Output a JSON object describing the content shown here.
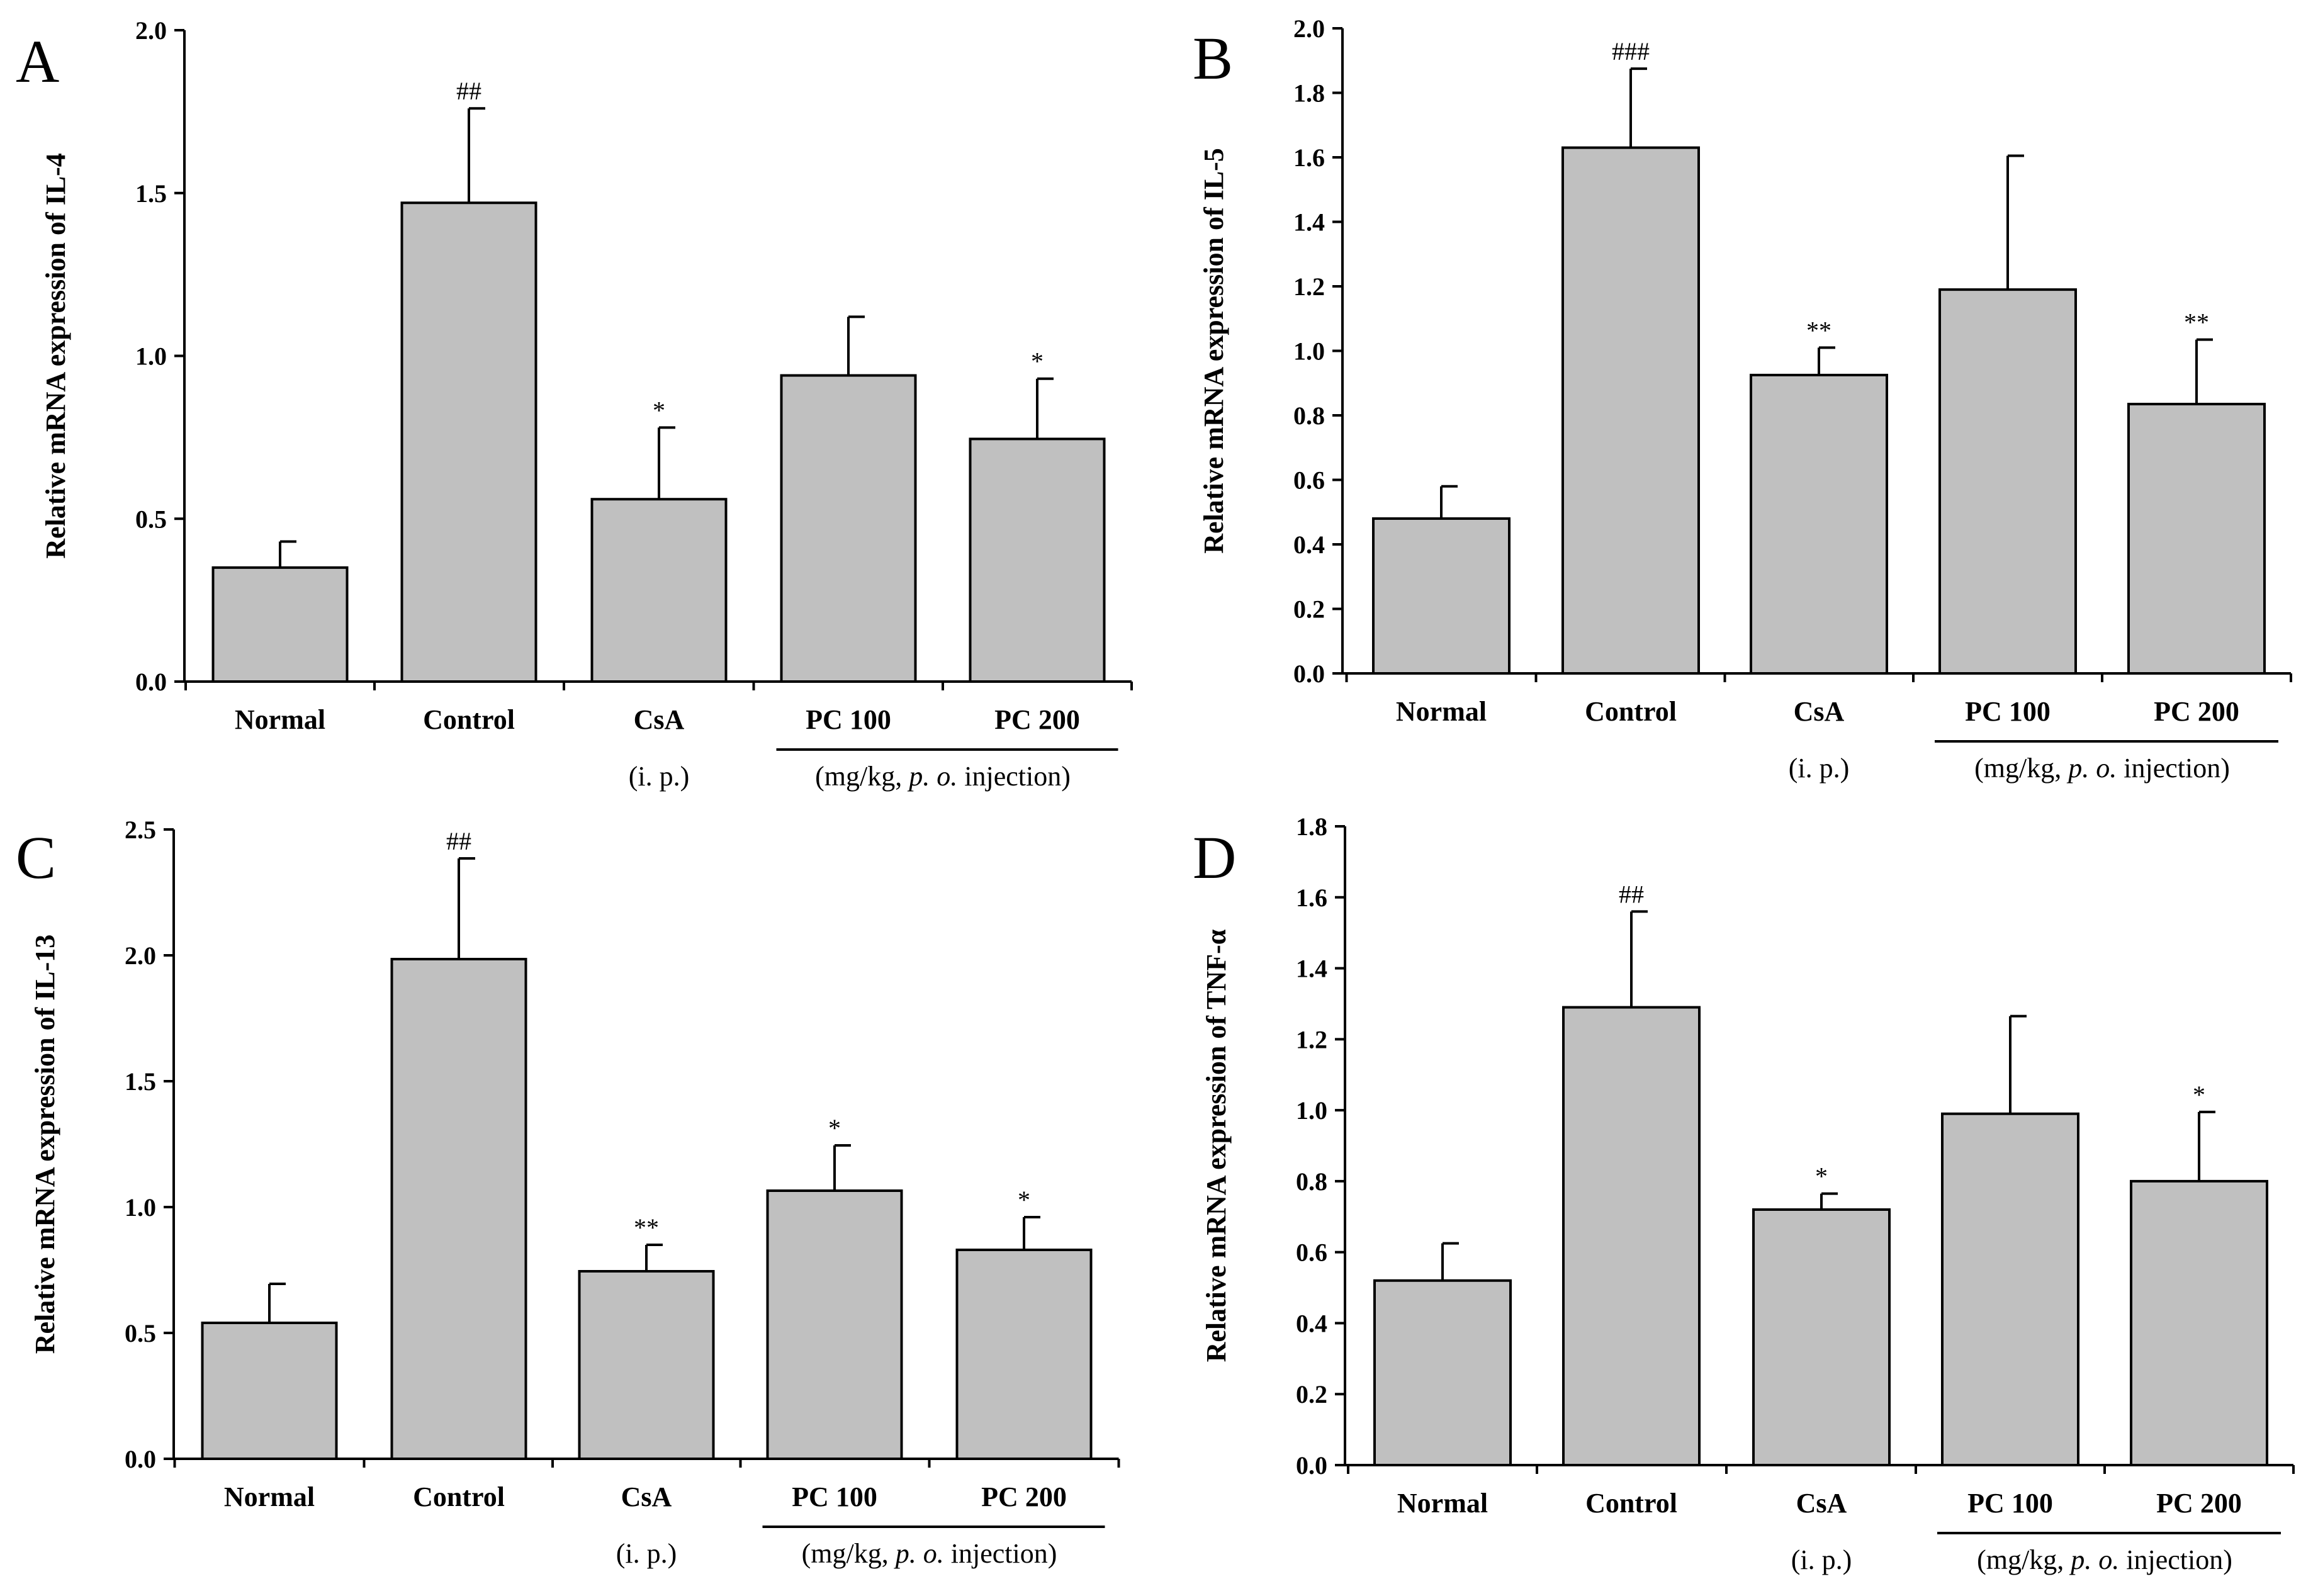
{
  "chart_data": [
    {
      "type": "bar",
      "panel": "A",
      "ylabel": "Relative mRNA expression of  IL-4",
      "ylim": [
        0,
        2.0
      ],
      "yticks": [
        "0.0",
        "0.5",
        "1.0",
        "1.5",
        "2.0"
      ],
      "categories": [
        "Normal",
        "Control",
        "CsA",
        "PC 100",
        "PC 200"
      ],
      "values": [
        0.35,
        1.47,
        0.56,
        0.94,
        0.745
      ],
      "errors": [
        0.08,
        0.29,
        0.22,
        0.18,
        0.185
      ],
      "significance": [
        "",
        "##",
        "*",
        "",
        "*"
      ],
      "group_notes": [
        "(i. p.)",
        "(mg/kg, p. o. injection)"
      ]
    },
    {
      "type": "bar",
      "panel": "B",
      "ylabel": "Relative mRNA expression of  IL-5",
      "ylim": [
        0,
        2.0
      ],
      "yticks": [
        "0.0",
        "0.2",
        "0.4",
        "0.6",
        "0.8",
        "1.0",
        "1.2",
        "1.4",
        "1.6",
        "1.8",
        "2.0"
      ],
      "categories": [
        "Normal",
        "Control",
        "CsA",
        "PC 100",
        "PC 200"
      ],
      "values": [
        0.48,
        1.63,
        0.925,
        1.19,
        0.835
      ],
      "errors": [
        0.1,
        0.245,
        0.085,
        0.415,
        0.2
      ],
      "significance": [
        "",
        "###",
        "**",
        "",
        "**"
      ],
      "group_notes": [
        "(i. p.)",
        "(mg/kg, p. o. injection)"
      ]
    },
    {
      "type": "bar",
      "panel": "C",
      "ylabel": "Relative mRNA expression of  IL-13",
      "ylim": [
        0,
        2.5
      ],
      "yticks": [
        "0.0",
        "0.5",
        "1.0",
        "1.5",
        "2.0",
        "2.5"
      ],
      "categories": [
        "Normal",
        "Control",
        "CsA",
        "PC 100",
        "PC 200"
      ],
      "values": [
        0.54,
        1.985,
        0.745,
        1.065,
        0.83
      ],
      "errors": [
        0.155,
        0.4,
        0.105,
        0.18,
        0.13
      ],
      "significance": [
        "",
        "##",
        "**",
        "*",
        "*"
      ],
      "group_notes": [
        "(i. p.)",
        "(mg/kg, p. o. injection)"
      ]
    },
    {
      "type": "bar",
      "panel": "D",
      "ylabel": "Relative mRNA expression of  TNF-α",
      "ylim": [
        0,
        1.8
      ],
      "yticks": [
        "0.0",
        "0.2",
        "0.4",
        "0.6",
        "0.8",
        "1.0",
        "1.2",
        "1.4",
        "1.6",
        "1.8"
      ],
      "categories": [
        "Normal",
        "Control",
        "CsA",
        "PC 100",
        "PC 200"
      ],
      "values": [
        0.52,
        1.29,
        0.72,
        0.99,
        0.8
      ],
      "errors": [
        0.105,
        0.27,
        0.045,
        0.275,
        0.195
      ],
      "significance": [
        "",
        "##",
        "*",
        "",
        "*"
      ],
      "group_notes": [
        "(i. p.)",
        "(mg/kg, p. o. injection)"
      ]
    }
  ],
  "colors": {
    "bar_fill": "#c0c0c0",
    "bar_stroke": "#000000"
  }
}
